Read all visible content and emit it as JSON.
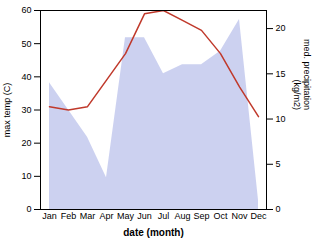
{
  "chart_data": {
    "type": "line",
    "categories": [
      "Jan",
      "Feb",
      "Mar",
      "Apr",
      "May",
      "Jun",
      "Jul",
      "Aug",
      "Sep",
      "Oct",
      "Nov",
      "Dec"
    ],
    "series": [
      {
        "type": "area",
        "axis": "y2",
        "color": "#b0b8e8",
        "values": [
          14,
          11,
          8,
          3.5,
          19,
          19,
          15,
          16,
          16,
          17.5,
          21,
          1
        ]
      },
      {
        "type": "line",
        "color": "#c0392b",
        "values": [
          31,
          30,
          31,
          39,
          47,
          59,
          60,
          57,
          54,
          47,
          37,
          28
        ]
      }
    ],
    "xlabel": "date (month)",
    "ylabel": "max temp (C)",
    "y2label": "med. precipitation\n(kg/m2)",
    "ylim": [
      0,
      60
    ],
    "yticks": [
      0,
      10,
      20,
      30,
      40,
      50,
      60
    ],
    "y2lim": [
      0,
      22
    ],
    "y2ticks": [
      0,
      5,
      10,
      15,
      20
    ],
    "grid": false
  }
}
